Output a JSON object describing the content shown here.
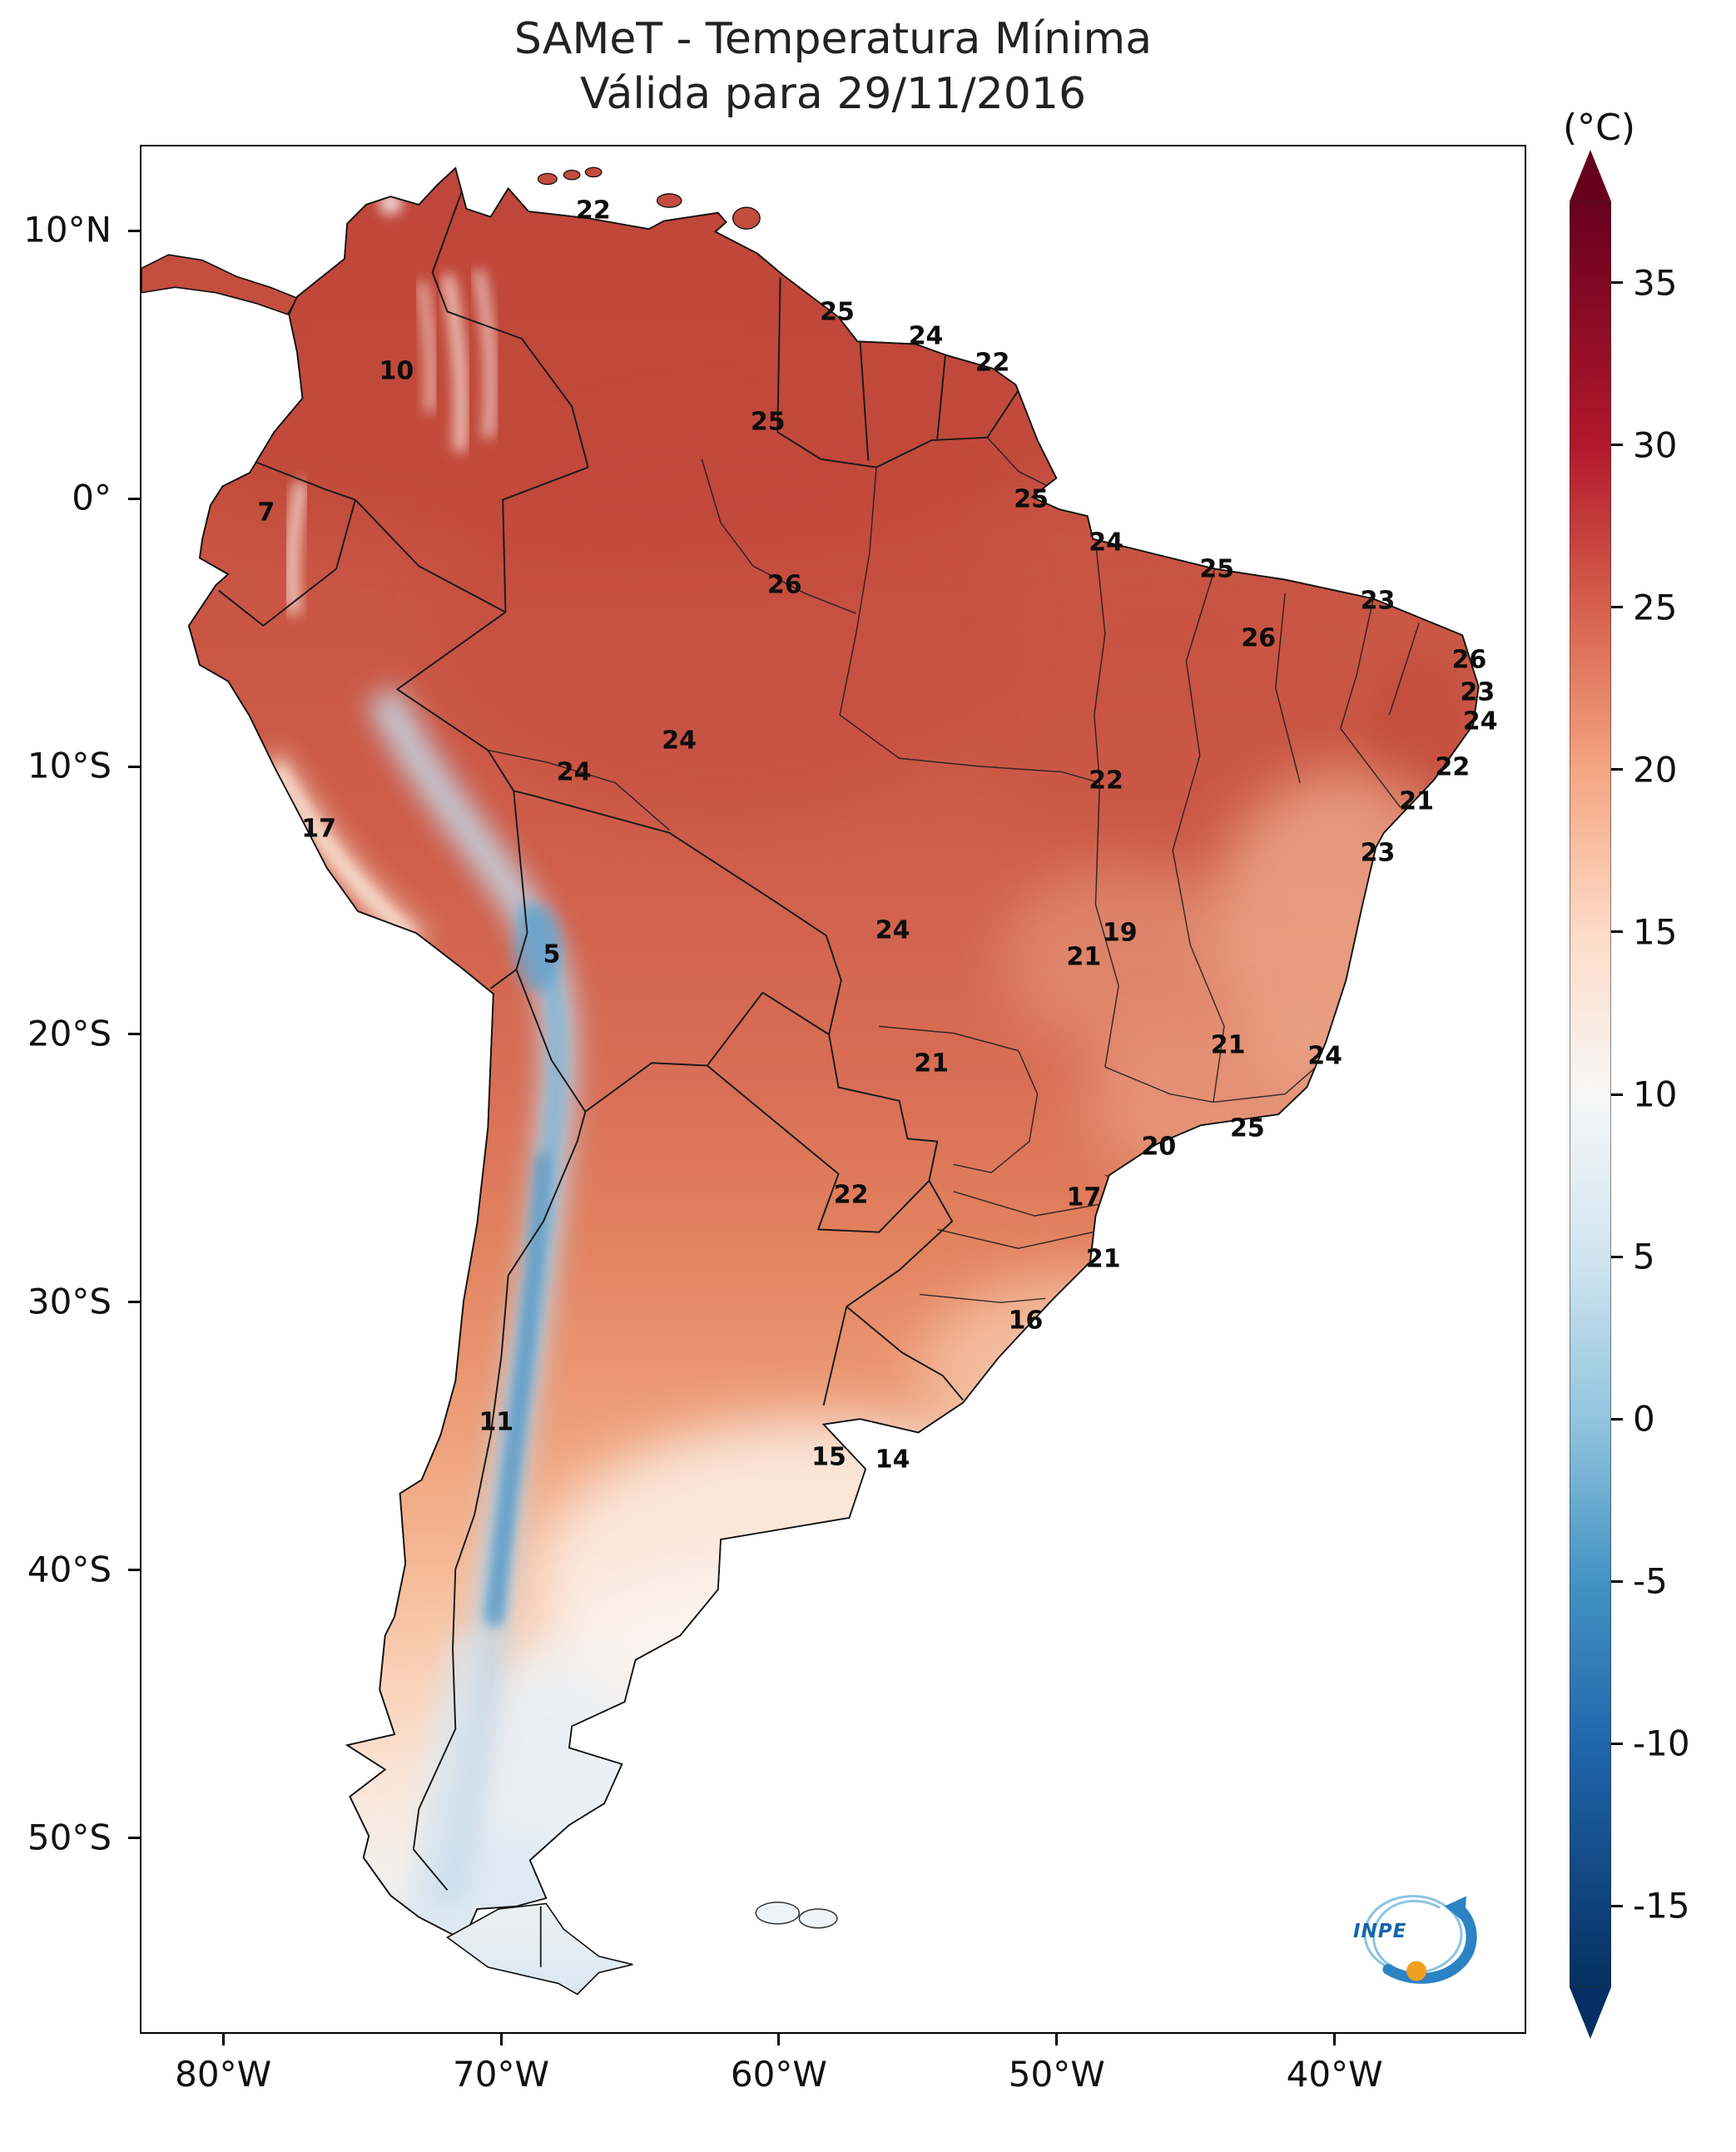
{
  "title": {
    "line1": "SAMeT - Temperatura Mínima",
    "line2": "Válida para 29/11/2016"
  },
  "colorbar": {
    "unit_label": "(°C)",
    "vmax": 37.5,
    "vmin": -17.5,
    "ticks": [
      35,
      30,
      25,
      20,
      15,
      10,
      5,
      0,
      -5,
      -10,
      -15
    ],
    "gradient_stops": [
      {
        "value": 37.5,
        "color": "#67001f"
      },
      {
        "value": 30,
        "color": "#b2182b"
      },
      {
        "value": 25,
        "color": "#d6604d"
      },
      {
        "value": 20,
        "color": "#f4a582"
      },
      {
        "value": 15,
        "color": "#fddbc7"
      },
      {
        "value": 10,
        "color": "#f7f7f7"
      },
      {
        "value": 5,
        "color": "#d1e5f0"
      },
      {
        "value": 0,
        "color": "#92c5de"
      },
      {
        "value": -5,
        "color": "#4393c3"
      },
      {
        "value": -10,
        "color": "#2166ac"
      },
      {
        "value": -17.5,
        "color": "#053061"
      }
    ],
    "arrow_top_color": "#67001f",
    "arrow_bottom_color": "#053061"
  },
  "axes": {
    "x": {
      "min": -83.0,
      "max": -33.1,
      "ticks": [
        {
          "label": "80°W",
          "value": -80
        },
        {
          "label": "70°W",
          "value": -70
        },
        {
          "label": "60°W",
          "value": -60
        },
        {
          "label": "50°W",
          "value": -50
        },
        {
          "label": "40°W",
          "value": -40
        }
      ]
    },
    "y": {
      "min": -57.3,
      "max": 13.2,
      "ticks": [
        {
          "label": "10°N",
          "value": 10
        },
        {
          "label": "0°",
          "value": 0
        },
        {
          "label": "10°S",
          "value": -10
        },
        {
          "label": "20°S",
          "value": -20
        },
        {
          "label": "30°S",
          "value": -30
        },
        {
          "label": "40°S",
          "value": -40
        },
        {
          "label": "50°S",
          "value": -50
        }
      ]
    }
  },
  "logo": {
    "text": "INPE"
  },
  "chart_data": {
    "type": "heatmap",
    "title": "SAMeT - Temperatura Mínima",
    "subtitle": "Válida para 29/11/2016",
    "region": "South America",
    "unit": "°C",
    "colormap": "RdBu_r",
    "value_range": [
      -17.5,
      37.5
    ],
    "legend_position": "right",
    "stations": [
      {
        "lon": -66.7,
        "lat": 10.8,
        "value": 22
      },
      {
        "lon": -57.9,
        "lat": 7.0,
        "value": 25
      },
      {
        "lon": -54.7,
        "lat": 6.1,
        "value": 24
      },
      {
        "lon": -52.3,
        "lat": 5.1,
        "value": 22
      },
      {
        "lon": -73.8,
        "lat": 4.8,
        "value": 10
      },
      {
        "lon": -60.4,
        "lat": 2.9,
        "value": 25
      },
      {
        "lon": -50.9,
        "lat": 0.0,
        "value": 25
      },
      {
        "lon": -78.5,
        "lat": -0.5,
        "value": 7
      },
      {
        "lon": -48.2,
        "lat": -1.6,
        "value": 24
      },
      {
        "lon": -44.2,
        "lat": -2.6,
        "value": 25
      },
      {
        "lon": -59.8,
        "lat": -3.2,
        "value": 26
      },
      {
        "lon": -38.4,
        "lat": -3.8,
        "value": 23
      },
      {
        "lon": -42.7,
        "lat": -5.2,
        "value": 26
      },
      {
        "lon": -35.1,
        "lat": -6.0,
        "value": 26
      },
      {
        "lon": -34.8,
        "lat": -7.2,
        "value": 23
      },
      {
        "lon": -34.7,
        "lat": -8.3,
        "value": 24
      },
      {
        "lon": -63.6,
        "lat": -9.0,
        "value": 24
      },
      {
        "lon": -35.7,
        "lat": -10.0,
        "value": 22
      },
      {
        "lon": -67.4,
        "lat": -10.2,
        "value": 24
      },
      {
        "lon": -48.2,
        "lat": -10.5,
        "value": 22
      },
      {
        "lon": -37.0,
        "lat": -11.3,
        "value": 21
      },
      {
        "lon": -76.6,
        "lat": -12.3,
        "value": 17
      },
      {
        "lon": -38.4,
        "lat": -13.2,
        "value": 23
      },
      {
        "lon": -55.9,
        "lat": -16.1,
        "value": 24
      },
      {
        "lon": -47.7,
        "lat": -16.2,
        "value": 19
      },
      {
        "lon": -49.0,
        "lat": -17.1,
        "value": 21
      },
      {
        "lon": -68.2,
        "lat": -17.0,
        "value": 5
      },
      {
        "lon": -43.8,
        "lat": -20.4,
        "value": 21
      },
      {
        "lon": -40.3,
        "lat": -20.8,
        "value": 24
      },
      {
        "lon": -54.5,
        "lat": -21.1,
        "value": 21
      },
      {
        "lon": -43.1,
        "lat": -23.5,
        "value": 25
      },
      {
        "lon": -46.3,
        "lat": -24.2,
        "value": 20
      },
      {
        "lon": -57.4,
        "lat": -26.0,
        "value": 22
      },
      {
        "lon": -49.0,
        "lat": -26.1,
        "value": 17
      },
      {
        "lon": -48.3,
        "lat": -28.4,
        "value": 21
      },
      {
        "lon": -51.1,
        "lat": -30.7,
        "value": 16
      },
      {
        "lon": -70.2,
        "lat": -34.5,
        "value": 11
      },
      {
        "lon": -58.2,
        "lat": -35.8,
        "value": 15
      },
      {
        "lon": -55.9,
        "lat": -35.9,
        "value": 14
      }
    ]
  }
}
